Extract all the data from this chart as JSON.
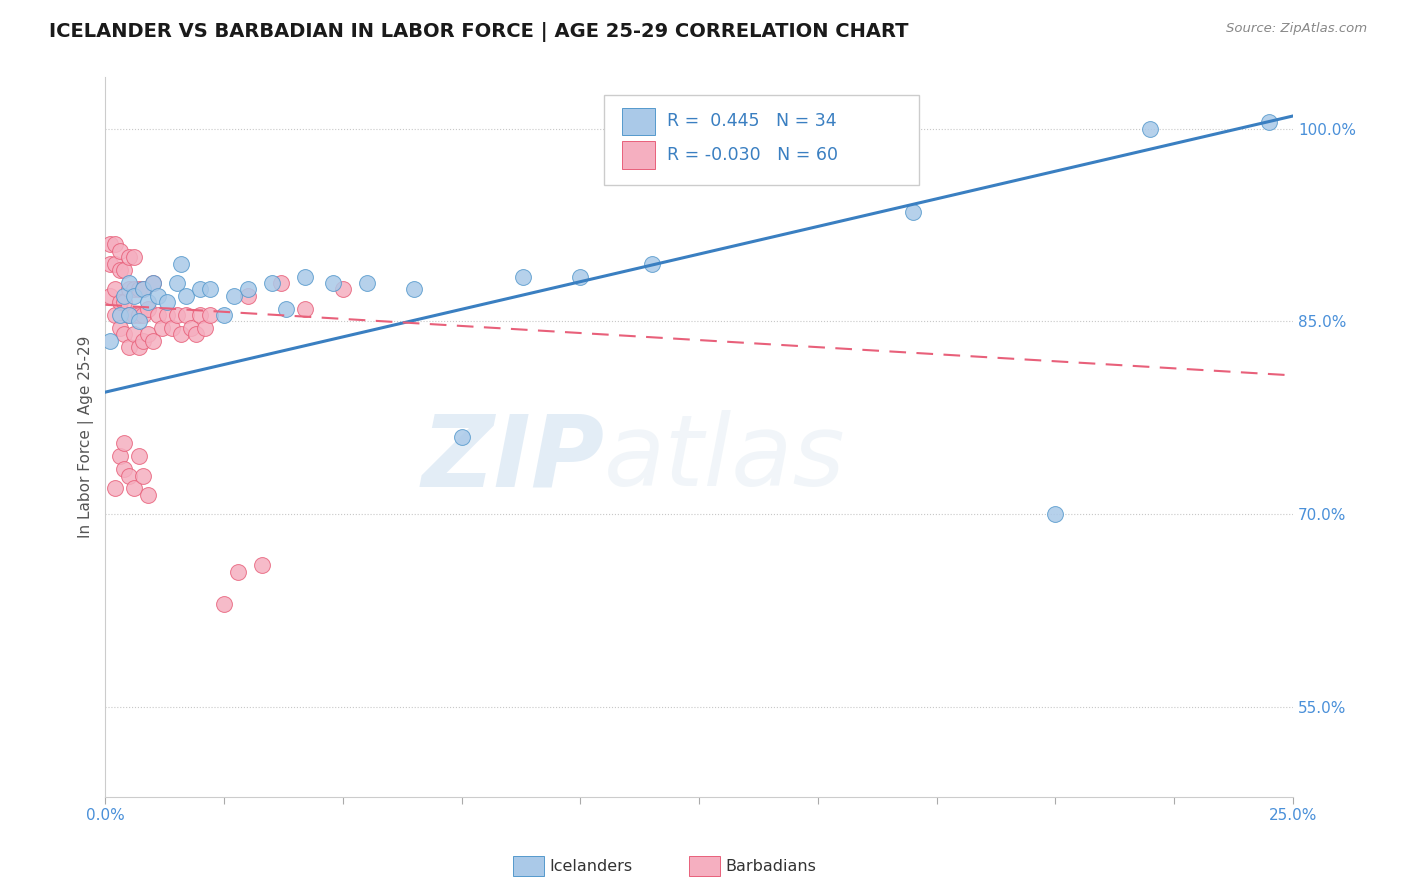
{
  "title": "ICELANDER VS BARBADIAN IN LABOR FORCE | AGE 25-29 CORRELATION CHART",
  "source_text": "Source: ZipAtlas.com",
  "ylabel": "In Labor Force | Age 25-29",
  "xlim": [
    0.0,
    0.25
  ],
  "ylim": [
    0.48,
    1.04
  ],
  "xticks": [
    0.0,
    0.025,
    0.05,
    0.075,
    0.1,
    0.125,
    0.15,
    0.175,
    0.2,
    0.225,
    0.25
  ],
  "xtick_labels": [
    "0.0%",
    "",
    "",
    "",
    "",
    "",
    "",
    "",
    "",
    "",
    "25.0%"
  ],
  "yticks": [
    0.55,
    0.7,
    0.85,
    1.0
  ],
  "ytick_labels": [
    "55.0%",
    "70.0%",
    "85.0%",
    "100.0%"
  ],
  "blue_R": 0.445,
  "blue_N": 34,
  "pink_R": -0.03,
  "pink_N": 60,
  "blue_color": "#aac9e8",
  "pink_color": "#f5afc0",
  "blue_edge_color": "#5599cc",
  "pink_edge_color": "#e8607a",
  "blue_line_color": "#3a7fc1",
  "pink_line_color": "#e8607a",
  "watermark_zip": "ZIP",
  "watermark_atlas": "atlas",
  "legend_blue_label": "Icelanders",
  "legend_pink_label": "Barbadians",
  "blue_trend_x0": 0.0,
  "blue_trend_y0": 0.795,
  "blue_trend_x1": 0.25,
  "blue_trend_y1": 1.01,
  "pink_trend_x0": 0.0,
  "pink_trend_y0": 0.863,
  "pink_trend_x1": 0.25,
  "pink_trend_y1": 0.808,
  "blue_scatter_x": [
    0.001,
    0.003,
    0.004,
    0.005,
    0.005,
    0.006,
    0.007,
    0.008,
    0.009,
    0.01,
    0.011,
    0.013,
    0.015,
    0.016,
    0.017,
    0.02,
    0.022,
    0.025,
    0.027,
    0.03,
    0.035,
    0.038,
    0.042,
    0.048,
    0.055,
    0.065,
    0.075,
    0.088,
    0.1,
    0.115,
    0.17,
    0.2,
    0.22,
    0.245
  ],
  "blue_scatter_y": [
    0.835,
    0.855,
    0.87,
    0.88,
    0.855,
    0.87,
    0.85,
    0.875,
    0.865,
    0.88,
    0.87,
    0.865,
    0.88,
    0.895,
    0.87,
    0.875,
    0.875,
    0.855,
    0.87,
    0.875,
    0.88,
    0.86,
    0.885,
    0.88,
    0.88,
    0.875,
    0.76,
    0.885,
    0.885,
    0.895,
    0.935,
    0.7,
    1.0,
    1.005
  ],
  "pink_scatter_x": [
    0.001,
    0.001,
    0.001,
    0.002,
    0.002,
    0.002,
    0.002,
    0.003,
    0.003,
    0.003,
    0.003,
    0.004,
    0.004,
    0.004,
    0.005,
    0.005,
    0.005,
    0.005,
    0.006,
    0.006,
    0.006,
    0.006,
    0.007,
    0.007,
    0.007,
    0.008,
    0.008,
    0.008,
    0.009,
    0.009,
    0.01,
    0.011,
    0.012,
    0.013,
    0.014,
    0.015,
    0.016,
    0.017,
    0.018,
    0.019,
    0.02,
    0.021,
    0.022,
    0.025,
    0.028,
    0.03,
    0.033,
    0.037,
    0.042,
    0.05,
    0.002,
    0.003,
    0.004,
    0.004,
    0.005,
    0.006,
    0.007,
    0.008,
    0.009,
    0.01
  ],
  "pink_scatter_y": [
    0.87,
    0.895,
    0.91,
    0.855,
    0.875,
    0.895,
    0.91,
    0.845,
    0.865,
    0.89,
    0.905,
    0.84,
    0.865,
    0.89,
    0.83,
    0.855,
    0.875,
    0.9,
    0.84,
    0.855,
    0.875,
    0.9,
    0.83,
    0.855,
    0.875,
    0.835,
    0.855,
    0.875,
    0.84,
    0.86,
    0.835,
    0.855,
    0.845,
    0.855,
    0.845,
    0.855,
    0.84,
    0.855,
    0.845,
    0.84,
    0.855,
    0.845,
    0.855,
    0.63,
    0.655,
    0.87,
    0.66,
    0.88,
    0.86,
    0.875,
    0.72,
    0.745,
    0.735,
    0.755,
    0.73,
    0.72,
    0.745,
    0.73,
    0.715,
    0.88
  ]
}
